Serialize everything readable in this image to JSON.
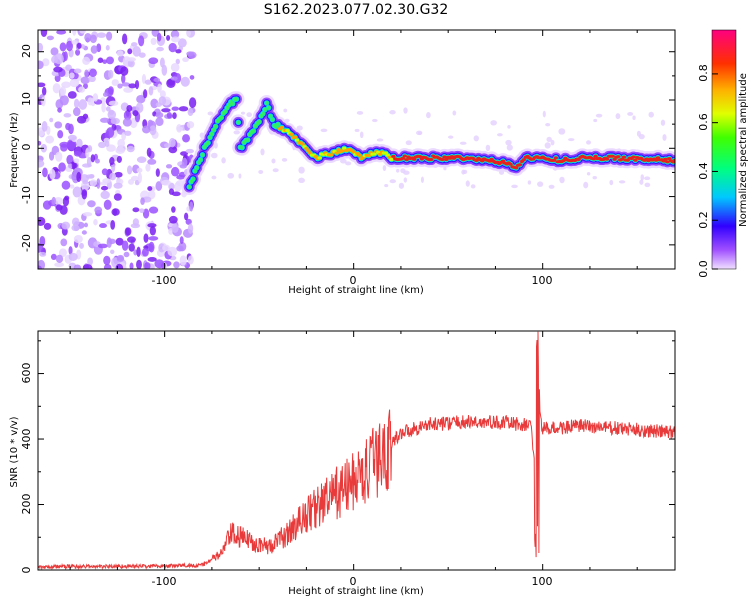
{
  "figure": {
    "title": "S162.2023.077.02.30.G32"
  },
  "chart_data": [
    {
      "type": "heatmap",
      "xlabel": "Height of straight line (km)",
      "ylabel": "Frequency (Hz)",
      "xlim": [
        -167,
        170
      ],
      "ylim": [
        -25,
        24.5
      ],
      "x_ticks": [
        "-100",
        "0",
        "100"
      ],
      "x_tick_values": [
        -100,
        0,
        100
      ],
      "y_ticks": [
        "-20",
        "-10",
        "0",
        "10",
        "20"
      ],
      "y_tick_values": [
        -20,
        -10,
        0,
        10,
        20
      ],
      "colorbar": {
        "label": "Normalized spectral amplitude",
        "ticks": [
          "0.0",
          "0.2",
          "0.4",
          "0.6",
          "0.8"
        ],
        "tick_values": [
          0.0,
          0.2,
          0.4,
          0.6,
          0.8
        ],
        "range": [
          0,
          0.98
        ]
      },
      "ridge": [
        [
          -87,
          -8
        ],
        [
          -83,
          -4
        ],
        [
          -79,
          0
        ],
        [
          -75,
          3
        ],
        [
          -71,
          6
        ],
        [
          -66,
          9
        ],
        [
          -62,
          10
        ],
        [
          -60,
          0
        ],
        [
          -56,
          2
        ],
        [
          -51,
          5
        ],
        [
          -46,
          9
        ],
        [
          -42,
          5
        ],
        [
          -37,
          4
        ],
        [
          -31,
          2
        ],
        [
          -25,
          0
        ],
        [
          -20,
          -2
        ],
        [
          -15,
          -1
        ],
        [
          -10,
          -1
        ],
        [
          -5,
          0
        ],
        [
          0,
          -1
        ],
        [
          5,
          -2
        ],
        [
          10,
          -1
        ],
        [
          15,
          -1
        ],
        [
          20,
          -2
        ],
        [
          40,
          -2
        ],
        [
          60,
          -2
        ],
        [
          70,
          -2.5
        ],
        [
          80,
          -3
        ],
        [
          86,
          -4
        ],
        [
          90,
          -2
        ],
        [
          100,
          -2
        ],
        [
          110,
          -2.5
        ],
        [
          120,
          -2
        ],
        [
          140,
          -2
        ],
        [
          170,
          -2.5
        ]
      ],
      "noise_region_x": [
        -167,
        -85
      ]
    },
    {
      "type": "line",
      "xlabel": "Height of straight line (km)",
      "ylabel": "SNR (10 * v/v)",
      "xlim": [
        -167,
        170
      ],
      "ylim": [
        0,
        730
      ],
      "x_ticks": [
        "-100",
        "0",
        "100"
      ],
      "x_tick_values": [
        -100,
        0,
        100
      ],
      "y_ticks": [
        "0",
        "200",
        "400",
        "600"
      ],
      "y_tick_values": [
        0,
        200,
        400,
        600
      ],
      "color": "#e83a3a",
      "envelope": [
        [
          -167,
          10
        ],
        [
          -100,
          12
        ],
        [
          -80,
          15
        ],
        [
          -70,
          50
        ],
        [
          -65,
          110
        ],
        [
          -55,
          90
        ],
        [
          -45,
          70
        ],
        [
          -35,
          110
        ],
        [
          -25,
          170
        ],
        [
          -15,
          210
        ],
        [
          -5,
          250
        ],
        [
          5,
          290
        ],
        [
          15,
          350
        ],
        [
          25,
          420
        ],
        [
          40,
          445
        ],
        [
          60,
          452
        ],
        [
          80,
          450
        ],
        [
          94,
          440
        ],
        [
          96,
          300
        ],
        [
          98,
          500
        ],
        [
          100,
          430
        ],
        [
          120,
          440
        ],
        [
          140,
          432
        ],
        [
          170,
          420
        ]
      ],
      "spike": {
        "x": 97,
        "max": 730,
        "min": 30
      }
    }
  ]
}
